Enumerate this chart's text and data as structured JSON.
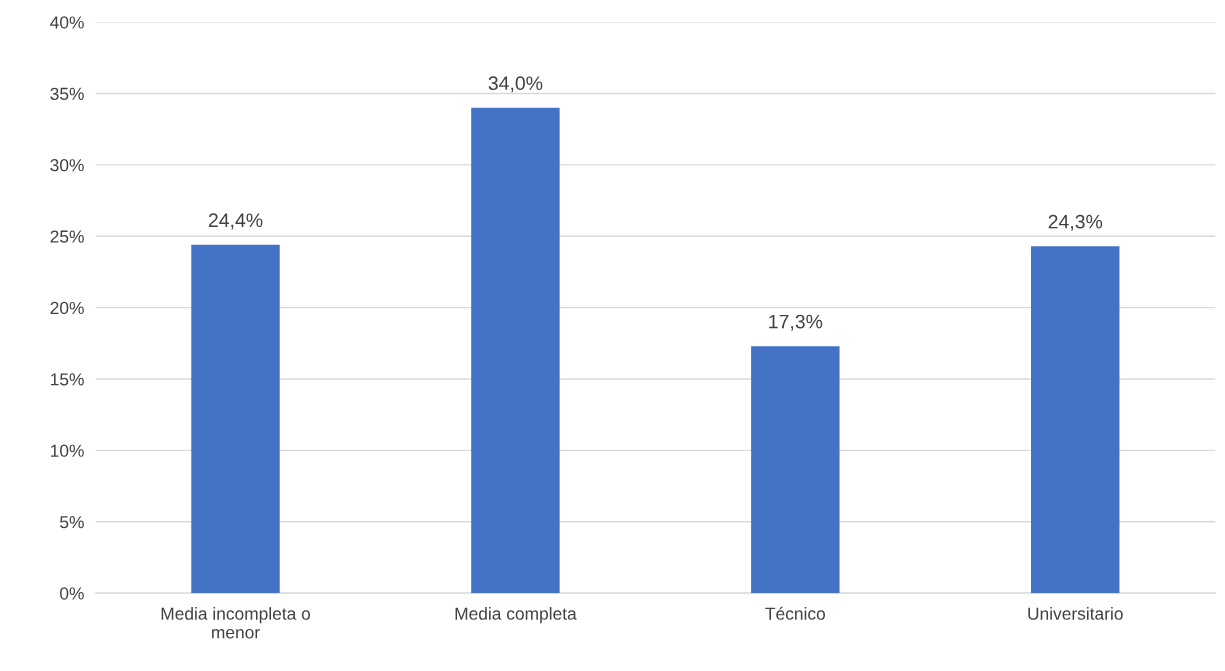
{
  "chart_data": {
    "type": "bar",
    "categories": [
      "Media incompleta o\nmenor",
      "Media completa",
      "Técnico",
      "Universitario"
    ],
    "values": [
      24.4,
      34.0,
      17.3,
      24.3
    ],
    "value_labels": [
      "24,4%",
      "34,0%",
      "17,3%",
      "24,3%"
    ],
    "color": "#4472c4",
    "ylim": [
      0,
      40
    ],
    "yticks": [
      {
        "value": 0,
        "label": "0%"
      },
      {
        "value": 5,
        "label": "5%"
      },
      {
        "value": 10,
        "label": "10%"
      },
      {
        "value": 15,
        "label": "15%"
      },
      {
        "value": 20,
        "label": "20%"
      },
      {
        "value": 25,
        "label": "25%"
      },
      {
        "value": 30,
        "label": "30%"
      },
      {
        "value": 35,
        "label": "35%"
      },
      {
        "value": 40,
        "label": "40%"
      }
    ],
    "grid": "y"
  }
}
